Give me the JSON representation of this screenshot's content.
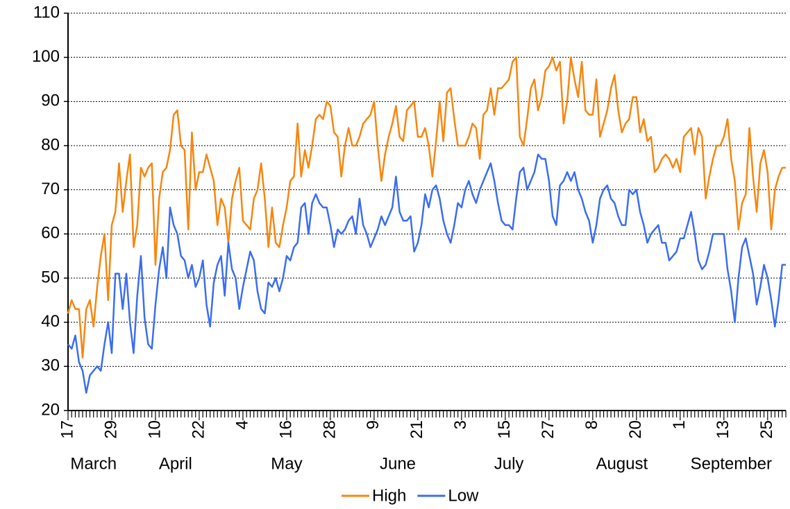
{
  "chart_data": {
    "type": "line",
    "categories": [
      "17",
      null,
      null,
      null,
      null,
      null,
      null,
      null,
      null,
      null,
      null,
      null,
      "29",
      null,
      null,
      null,
      null,
      null,
      null,
      null,
      null,
      null,
      null,
      null,
      "10",
      null,
      null,
      null,
      null,
      null,
      null,
      null,
      null,
      null,
      null,
      null,
      "22",
      null,
      null,
      null,
      null,
      null,
      null,
      null,
      null,
      null,
      null,
      null,
      "4",
      null,
      null,
      null,
      null,
      null,
      null,
      null,
      null,
      null,
      null,
      null,
      "16",
      null,
      null,
      null,
      null,
      null,
      null,
      null,
      null,
      null,
      null,
      null,
      "28",
      null,
      null,
      null,
      null,
      null,
      null,
      null,
      null,
      null,
      null,
      null,
      "9",
      null,
      null,
      null,
      null,
      null,
      null,
      null,
      null,
      null,
      null,
      null,
      "21",
      null,
      null,
      null,
      null,
      null,
      null,
      null,
      null,
      null,
      null,
      null,
      "3",
      null,
      null,
      null,
      null,
      null,
      null,
      null,
      null,
      null,
      null,
      null,
      "15",
      null,
      null,
      null,
      null,
      null,
      null,
      null,
      null,
      null,
      null,
      null,
      "27",
      null,
      null,
      null,
      null,
      null,
      null,
      null,
      null,
      null,
      null,
      null,
      "8",
      null,
      null,
      null,
      null,
      null,
      null,
      null,
      null,
      null,
      null,
      null,
      "20",
      null,
      null,
      null,
      null,
      null,
      null,
      null,
      null,
      null,
      null,
      null,
      "1",
      null,
      null,
      null,
      null,
      null,
      null,
      null,
      null,
      null,
      null,
      null,
      "13",
      null,
      null,
      null,
      null,
      null,
      null,
      null,
      null,
      null,
      null,
      null,
      "25",
      null,
      null,
      null,
      null,
      null
    ],
    "x_groups": [
      "March",
      "April",
      "May",
      "June",
      "July",
      "August",
      "September"
    ],
    "series": [
      {
        "name": "High",
        "color": "#f7860e",
        "values": [
          42,
          45,
          43,
          43,
          32,
          43,
          45,
          39,
          48,
          55,
          60,
          45,
          62,
          65,
          76,
          65,
          72,
          78,
          57,
          62,
          75,
          73,
          75,
          76,
          53,
          68,
          74,
          75,
          79,
          87,
          88,
          80,
          79,
          61,
          83,
          70,
          74,
          74,
          78,
          75,
          72,
          62,
          68,
          66,
          58,
          68,
          72,
          75,
          63,
          62,
          61,
          68,
          70,
          76,
          68,
          57,
          66,
          58,
          57,
          62,
          66,
          72,
          73,
          85,
          73,
          79,
          75,
          80,
          86,
          87,
          86,
          90,
          89,
          83,
          82,
          73,
          80,
          84,
          80,
          80,
          82,
          85,
          86,
          87,
          90,
          80,
          72,
          78,
          82,
          85,
          89,
          82,
          81,
          88,
          89,
          90,
          82,
          82,
          84,
          80,
          73,
          81,
          90,
          81,
          92,
          93,
          86,
          80,
          80,
          80,
          82,
          85,
          84,
          77,
          87,
          88,
          93,
          87,
          93,
          93,
          94,
          95,
          99,
          100,
          82,
          80,
          86,
          93,
          95,
          88,
          91,
          97,
          98,
          100,
          97,
          99,
          85,
          90,
          100,
          95,
          91,
          99,
          88,
          87,
          87,
          95,
          82,
          85,
          88,
          93,
          96,
          88,
          83,
          85,
          86,
          91,
          91,
          83,
          86,
          81,
          82,
          74,
          75,
          77,
          78,
          77,
          75,
          77,
          74,
          82,
          83,
          84,
          78,
          84,
          82,
          68,
          73,
          77,
          80,
          80,
          82,
          86,
          77,
          72,
          61,
          67,
          69,
          84,
          73,
          65,
          76,
          79,
          74,
          61,
          70,
          73,
          75,
          75
        ]
      },
      {
        "name": "Low",
        "color": "#3a6df0",
        "values": [
          35,
          34,
          37,
          31,
          29,
          24,
          28,
          29,
          30,
          29,
          35,
          40,
          33,
          51,
          51,
          43,
          51,
          40,
          33,
          46,
          55,
          41,
          35,
          34,
          44,
          52,
          57,
          50,
          66,
          62,
          60,
          55,
          54,
          50,
          53,
          48,
          50,
          54,
          44,
          39,
          49,
          53,
          55,
          46,
          58,
          52,
          50,
          43,
          48,
          52,
          56,
          54,
          47,
          43,
          42,
          49,
          48,
          50,
          47,
          50,
          55,
          54,
          57,
          58,
          66,
          67,
          60,
          67,
          69,
          67,
          66,
          66,
          62,
          57,
          61,
          60,
          61,
          63,
          64,
          60,
          68,
          62,
          60,
          57,
          59,
          61,
          64,
          62,
          64,
          66,
          73,
          65,
          63,
          63,
          64,
          56,
          58,
          62,
          69,
          66,
          70,
          71,
          68,
          63,
          60,
          58,
          62,
          67,
          66,
          70,
          72,
          69,
          67,
          70,
          72,
          74,
          76,
          72,
          67,
          63,
          62,
          62,
          61,
          68,
          74,
          75,
          70,
          72,
          74,
          78,
          77,
          77,
          72,
          64,
          62,
          71,
          72,
          74,
          72,
          74,
          70,
          68,
          65,
          63,
          58,
          62,
          68,
          70,
          71,
          68,
          67,
          64,
          62,
          62,
          70,
          69,
          70,
          65,
          62,
          58,
          60,
          61,
          62,
          58,
          58,
          54,
          55,
          56,
          59,
          59,
          62,
          65,
          60,
          54,
          52,
          53,
          56,
          60,
          60,
          60,
          60,
          52,
          47,
          40,
          50,
          57,
          59,
          55,
          51,
          44,
          48,
          53,
          50,
          45,
          39,
          45,
          53,
          53
        ]
      }
    ],
    "ylim": [
      20,
      110
    ],
    "yticks": [
      20,
      30,
      40,
      50,
      60,
      70,
      80,
      90,
      100,
      110
    ],
    "grid": true,
    "legend": "bottom"
  }
}
